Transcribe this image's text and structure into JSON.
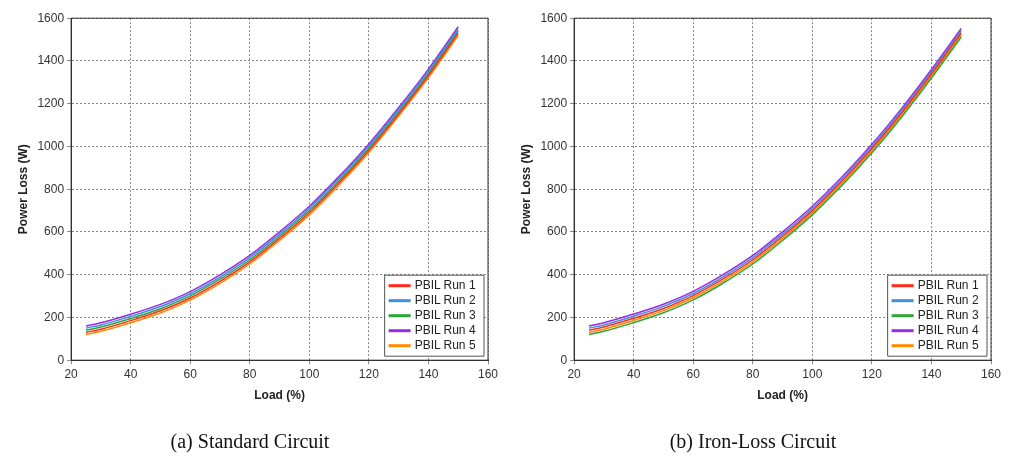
{
  "chart_data": [
    {
      "type": "line",
      "title": "(a) Standard Circuit",
      "xlabel": "Load (%)",
      "ylabel": "Power Loss (W)",
      "xlim": [
        20,
        160
      ],
      "xticks": [
        20,
        40,
        60,
        80,
        100,
        120,
        140,
        160
      ],
      "ylim": [
        0,
        1600
      ],
      "yticks": [
        0,
        200,
        400,
        600,
        800,
        1000,
        1200,
        1400,
        1600
      ],
      "grid": true,
      "legend": "bottom right",
      "marker": "none",
      "line_style": "solid",
      "x": [
        25,
        30,
        40,
        50,
        60,
        70,
        80,
        90,
        100,
        110,
        120,
        130,
        140,
        150
      ],
      "series": [
        {
          "name": "PBIL Run 1",
          "color": "#ff2a1a",
          "values": [
            130,
            145,
            185,
            231,
            291,
            369,
            460,
            570,
            690,
            830,
            982,
            1152,
            1332,
            1530
          ]
        },
        {
          "name": "PBIL Run 2",
          "color": "#3d8fe0",
          "values": [
            150,
            165,
            205,
            251,
            311,
            389,
            480,
            590,
            710,
            850,
            1002,
            1172,
            1352,
            1550
          ]
        },
        {
          "name": "PBIL Run 3",
          "color": "#2ea43a",
          "values": [
            140,
            155,
            195,
            241,
            301,
            379,
            470,
            580,
            700,
            840,
            992,
            1162,
            1342,
            1540
          ]
        },
        {
          "name": "PBIL Run 4",
          "color": "#9a2be8",
          "values": [
            160,
            175,
            215,
            261,
            321,
            399,
            490,
            600,
            720,
            860,
            1012,
            1182,
            1362,
            1560
          ]
        },
        {
          "name": "PBIL Run 5",
          "color": "#ff8a00",
          "values": [
            120,
            135,
            175,
            221,
            281,
            359,
            450,
            560,
            680,
            820,
            972,
            1142,
            1322,
            1520
          ]
        }
      ]
    },
    {
      "type": "line",
      "title": "(b) Iron-Loss Circuit",
      "xlabel": "Load (%)",
      "ylabel": "Power Loss (W)",
      "xlim": [
        20,
        160
      ],
      "xticks": [
        20,
        40,
        60,
        80,
        100,
        120,
        140,
        160
      ],
      "ylim": [
        0,
        1600
      ],
      "yticks": [
        0,
        200,
        400,
        600,
        800,
        1000,
        1200,
        1400,
        1600
      ],
      "grid": true,
      "legend": "bottom right",
      "marker": "none",
      "line_style": "solid",
      "x": [
        25,
        30,
        40,
        50,
        60,
        70,
        80,
        90,
        100,
        110,
        120,
        130,
        140,
        150
      ],
      "series": [
        {
          "name": "PBIL Run 1",
          "color": "#ff2a1a",
          "values": [
            140,
            155,
            196,
            242,
            302,
            380,
            470,
            580,
            700,
            838,
            990,
            1158,
            1340,
            1532
          ]
        },
        {
          "name": "PBIL Run 2",
          "color": "#3d8fe0",
          "values": [
            150,
            165,
            206,
            252,
            312,
            390,
            480,
            590,
            710,
            848,
            1000,
            1168,
            1350,
            1542
          ]
        },
        {
          "name": "PBIL Run 3",
          "color": "#2ea43a",
          "values": [
            120,
            135,
            176,
            222,
            282,
            360,
            450,
            560,
            680,
            818,
            970,
            1138,
            1320,
            1512
          ]
        },
        {
          "name": "PBIL Run 4",
          "color": "#9a2be8",
          "values": [
            160,
            175,
            216,
            262,
            322,
            400,
            490,
            600,
            720,
            858,
            1010,
            1178,
            1360,
            1552
          ]
        },
        {
          "name": "PBIL Run 5",
          "color": "#ff8a00",
          "values": [
            130,
            145,
            186,
            232,
            292,
            370,
            460,
            570,
            690,
            828,
            980,
            1148,
            1330,
            1522
          ]
        }
      ]
    }
  ]
}
